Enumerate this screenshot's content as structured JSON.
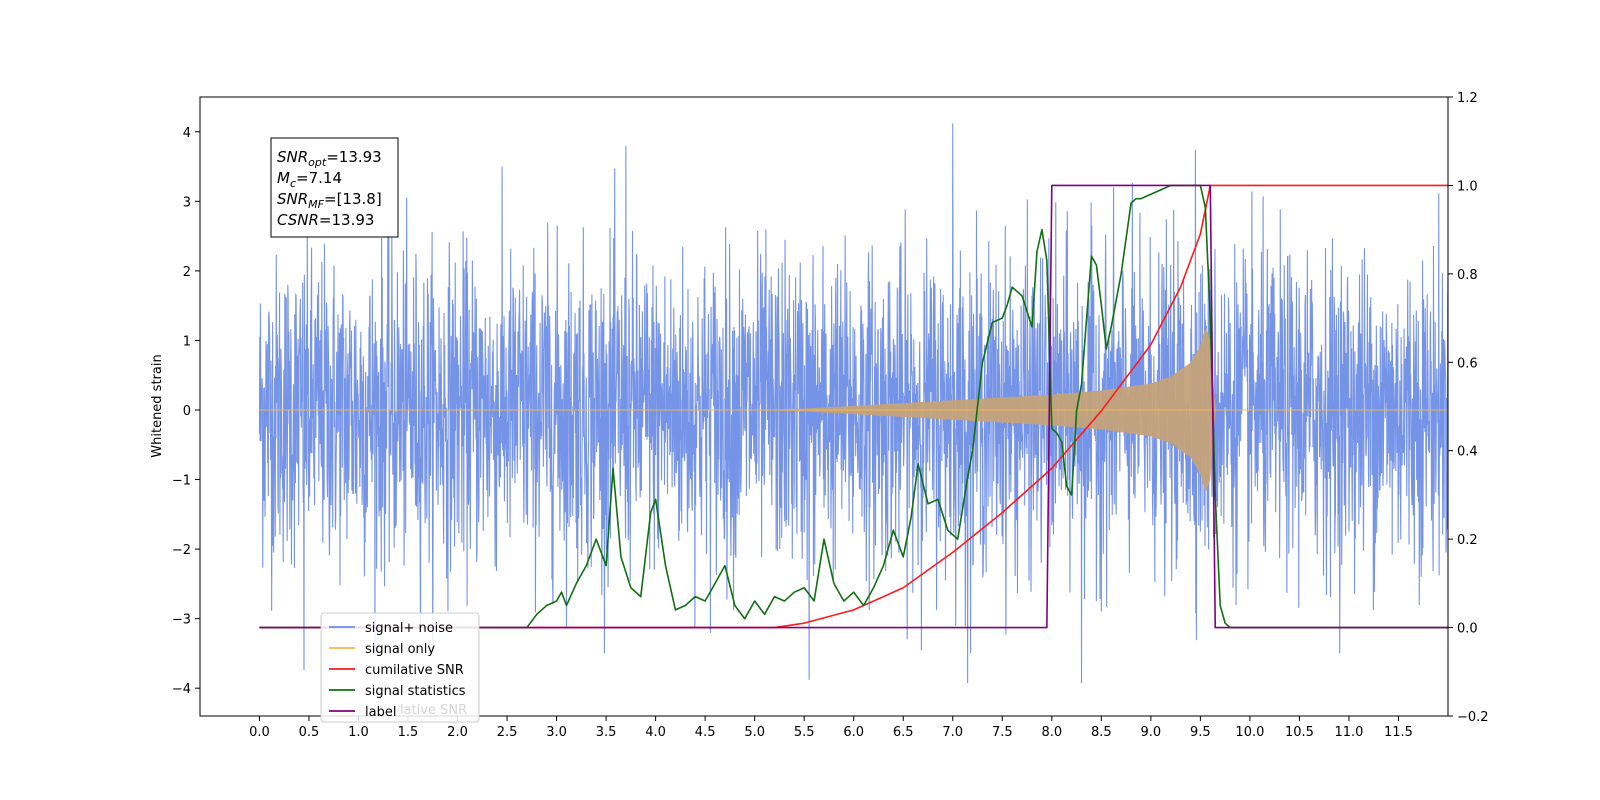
{
  "chart_data": {
    "type": "line",
    "title": "",
    "xlabel": "",
    "ylabel": "Whitened strain",
    "xlim": [
      -0.6,
      12.0
    ],
    "ylim": [
      -4.4,
      4.5
    ],
    "y2lim": [
      -0.2,
      1.2
    ],
    "x_ticks": [
      "0.0",
      "0.5",
      "1.0",
      "1.5",
      "2.0",
      "2.5",
      "3.0",
      "3.5",
      "4.0",
      "4.5",
      "5.0",
      "5.5",
      "6.0",
      "6.5",
      "7.0",
      "7.5",
      "8.0",
      "8.5",
      "9.0",
      "9.5",
      "10.0",
      "10.5",
      "11.0",
      "11.5"
    ],
    "y_ticks": [
      "4",
      "3",
      "2",
      "1",
      "0",
      "−1",
      "−2",
      "−3",
      "−4"
    ],
    "y2_ticks": [
      "1.2",
      "1.0",
      "0.8",
      "0.6",
      "0.4",
      "0.2",
      "0.0",
      "−0.2"
    ],
    "grid": false,
    "legend_position": "lower-left",
    "colors": {
      "signal_noise": "#6f8ee6",
      "signal_only": "#f5b94d",
      "signal_only_fill": "#c4a27a",
      "cumulative_snr": "#ff1a1a",
      "signal_statistics": "#107010",
      "label": "#800080"
    },
    "annotation": [
      {
        "main": "SNR",
        "sub": "opt",
        "value": "=13.93"
      },
      {
        "main": "M",
        "sub": "c",
        "value": "=7.14"
      },
      {
        "main": "SNR",
        "sub": "MF",
        "value": "=[13.8]"
      },
      {
        "main": "CSNR",
        "sub": "",
        "value": "=13.93"
      }
    ],
    "series": [
      {
        "name": "signal+ noise",
        "axis": "left",
        "style": "dense-noise",
        "amplitude_std": 1.1,
        "x_range": [
          0.0,
          12.0
        ],
        "peak_values": [
          {
            "x": 3.7,
            "y": 3.8
          },
          {
            "x": 7.0,
            "y": 4.12
          },
          {
            "x": 9.45,
            "y": 3.74
          },
          {
            "x": 0.45,
            "y": -3.74
          },
          {
            "x": 5.55,
            "y": -3.88
          },
          {
            "x": 7.15,
            "y": -3.93
          },
          {
            "x": 8.3,
            "y": -3.93
          }
        ]
      },
      {
        "name": "signal only",
        "axis": "left",
        "style": "chirp-envelope",
        "x_range": [
          0.0,
          12.0
        ],
        "x": [
          0.0,
          5.0,
          5.5,
          6.0,
          6.5,
          7.0,
          7.5,
          8.0,
          8.5,
          9.0,
          9.2,
          9.4,
          9.5,
          9.55,
          9.6,
          9.65,
          12.0
        ],
        "envelope": [
          0.0,
          0.0,
          0.02,
          0.06,
          0.1,
          0.14,
          0.18,
          0.22,
          0.28,
          0.38,
          0.48,
          0.68,
          0.92,
          1.2,
          1.0,
          0.0,
          0.0
        ]
      },
      {
        "name": "cumilative SNR",
        "axis": "right",
        "x": [
          0.0,
          5.2,
          5.5,
          6.0,
          6.5,
          7.0,
          7.5,
          8.0,
          8.5,
          9.0,
          9.3,
          9.5,
          9.6,
          12.0
        ],
        "values": [
          0.0,
          0.0,
          0.01,
          0.04,
          0.09,
          0.17,
          0.26,
          0.36,
          0.49,
          0.64,
          0.77,
          0.89,
          1.0,
          1.0
        ]
      },
      {
        "name": "signal statistics",
        "axis": "right",
        "x": [
          0.0,
          2.7,
          2.8,
          2.9,
          3.0,
          3.05,
          3.1,
          3.2,
          3.3,
          3.4,
          3.5,
          3.57,
          3.65,
          3.75,
          3.85,
          3.95,
          4.0,
          4.1,
          4.2,
          4.3,
          4.4,
          4.5,
          4.6,
          4.7,
          4.8,
          4.9,
          5.0,
          5.1,
          5.2,
          5.3,
          5.4,
          5.5,
          5.6,
          5.7,
          5.8,
          5.9,
          6.0,
          6.1,
          6.2,
          6.3,
          6.4,
          6.5,
          6.58,
          6.65,
          6.75,
          6.85,
          6.95,
          7.05,
          7.15,
          7.2,
          7.3,
          7.4,
          7.5,
          7.55,
          7.6,
          7.7,
          7.8,
          7.85,
          7.9,
          7.95,
          8.0,
          8.05,
          8.1,
          8.15,
          8.2,
          8.25,
          8.3,
          8.4,
          8.45,
          8.5,
          8.55,
          8.6,
          8.7,
          8.8,
          8.85,
          8.9,
          9.0,
          9.1,
          9.2,
          9.3,
          9.4,
          9.5,
          9.55,
          9.6,
          9.65,
          9.7,
          9.75,
          9.8,
          9.85,
          9.9,
          10.0,
          12.0
        ],
        "values": [
          0.0,
          0.0,
          0.03,
          0.05,
          0.06,
          0.08,
          0.05,
          0.1,
          0.14,
          0.2,
          0.14,
          0.36,
          0.16,
          0.09,
          0.07,
          0.26,
          0.29,
          0.14,
          0.04,
          0.05,
          0.07,
          0.06,
          0.1,
          0.14,
          0.05,
          0.02,
          0.06,
          0.03,
          0.07,
          0.06,
          0.08,
          0.09,
          0.06,
          0.2,
          0.1,
          0.06,
          0.08,
          0.05,
          0.09,
          0.14,
          0.22,
          0.16,
          0.25,
          0.37,
          0.28,
          0.29,
          0.22,
          0.2,
          0.34,
          0.4,
          0.6,
          0.69,
          0.7,
          0.73,
          0.77,
          0.75,
          0.68,
          0.85,
          0.9,
          0.83,
          0.45,
          0.44,
          0.42,
          0.32,
          0.3,
          0.49,
          0.55,
          0.84,
          0.82,
          0.73,
          0.63,
          0.68,
          0.8,
          0.96,
          0.97,
          0.97,
          0.98,
          0.99,
          1.0,
          1.0,
          1.0,
          1.0,
          0.95,
          0.7,
          0.3,
          0.05,
          0.01,
          0.0,
          0.0,
          0.0,
          0.0,
          0.0
        ]
      },
      {
        "name": "label",
        "axis": "right",
        "x": [
          0.0,
          7.95,
          8.0,
          9.6,
          9.65,
          12.0
        ],
        "values": [
          0.0,
          0.0,
          1.0,
          1.0,
          0.0,
          0.0
        ]
      }
    ],
    "legend": {
      "entries": [
        {
          "label": "signal+ noise",
          "color": "#6f8ee6"
        },
        {
          "label": "signal only",
          "color": "#f5b94d"
        },
        {
          "label": "cumilative SNR",
          "color": "#ff1a1a"
        },
        {
          "label": "signal statistics",
          "color": "#107010"
        },
        {
          "label": "label",
          "color": "#800080"
        }
      ],
      "ghost_text": "lative SNR"
    }
  }
}
